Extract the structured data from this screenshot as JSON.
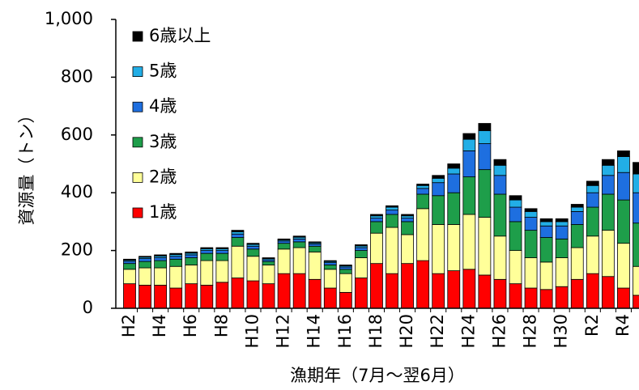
{
  "chart_data": {
    "type": "bar",
    "stacked": true,
    "y_label": "資源量（トン）",
    "x_label": "漁期年（7月～翌6月）",
    "categories": [
      "H2",
      null,
      "H4",
      null,
      "H6",
      null,
      "H8",
      null,
      "H10",
      null,
      "H12",
      null,
      "H14",
      null,
      "H16",
      null,
      "H18",
      null,
      "H20",
      null,
      "H22",
      null,
      "H24",
      null,
      "H26",
      null,
      "H28",
      null,
      "H30",
      null,
      "R2",
      null,
      "R4",
      null
    ],
    "series": [
      {
        "name": "1歳",
        "color": "#ff0000",
        "values": [
          85,
          80,
          80,
          70,
          85,
          80,
          90,
          105,
          95,
          85,
          120,
          120,
          100,
          70,
          55,
          105,
          155,
          120,
          155,
          165,
          120,
          130,
          135,
          115,
          100,
          85,
          70,
          65,
          75,
          100,
          120,
          110,
          70,
          45
        ]
      },
      {
        "name": "2歳",
        "color": "#ffff99",
        "values": [
          50,
          60,
          60,
          75,
          65,
          85,
          75,
          110,
          85,
          65,
          85,
          90,
          95,
          65,
          65,
          70,
          105,
          160,
          100,
          180,
          170,
          160,
          190,
          200,
          150,
          115,
          105,
          95,
          100,
          110,
          130,
          160,
          155,
          100
        ]
      },
      {
        "name": "3歳",
        "color": "#1e9e4a",
        "values": [
          20,
          22,
          25,
          25,
          25,
          25,
          25,
          30,
          25,
          12,
          20,
          20,
          20,
          15,
          15,
          25,
          40,
          45,
          45,
          50,
          100,
          110,
          130,
          165,
          145,
          100,
          95,
          85,
          65,
          80,
          100,
          125,
          150,
          150
        ]
      },
      {
        "name": "4歳",
        "color": "#1e6fe0",
        "values": [
          8,
          10,
          10,
          10,
          10,
          10,
          10,
          12,
          10,
          6,
          8,
          10,
          8,
          8,
          8,
          10,
          12,
          15,
          12,
          20,
          45,
          65,
          90,
          90,
          65,
          50,
          45,
          40,
          45,
          45,
          50,
          65,
          95,
          105
        ]
      },
      {
        "name": "5歳",
        "color": "#22aee6",
        "values": [
          4,
          5,
          6,
          6,
          6,
          6,
          6,
          8,
          6,
          4,
          4,
          6,
          4,
          4,
          4,
          6,
          8,
          10,
          8,
          10,
          15,
          20,
          40,
          45,
          35,
          25,
          20,
          15,
          15,
          15,
          25,
          35,
          55,
          65
        ]
      },
      {
        "name": "6歳以上",
        "color": "#000000",
        "values": [
          3,
          3,
          4,
          4,
          4,
          4,
          4,
          5,
          4,
          3,
          3,
          4,
          3,
          3,
          3,
          4,
          5,
          5,
          5,
          5,
          10,
          15,
          20,
          25,
          20,
          15,
          10,
          10,
          10,
          10,
          15,
          20,
          20,
          40
        ]
      }
    ],
    "ylim": [
      0,
      1000
    ],
    "yticks": [
      0,
      200,
      400,
      600,
      800,
      {
        "value": 1000,
        "label": "1,000"
      }
    ]
  }
}
